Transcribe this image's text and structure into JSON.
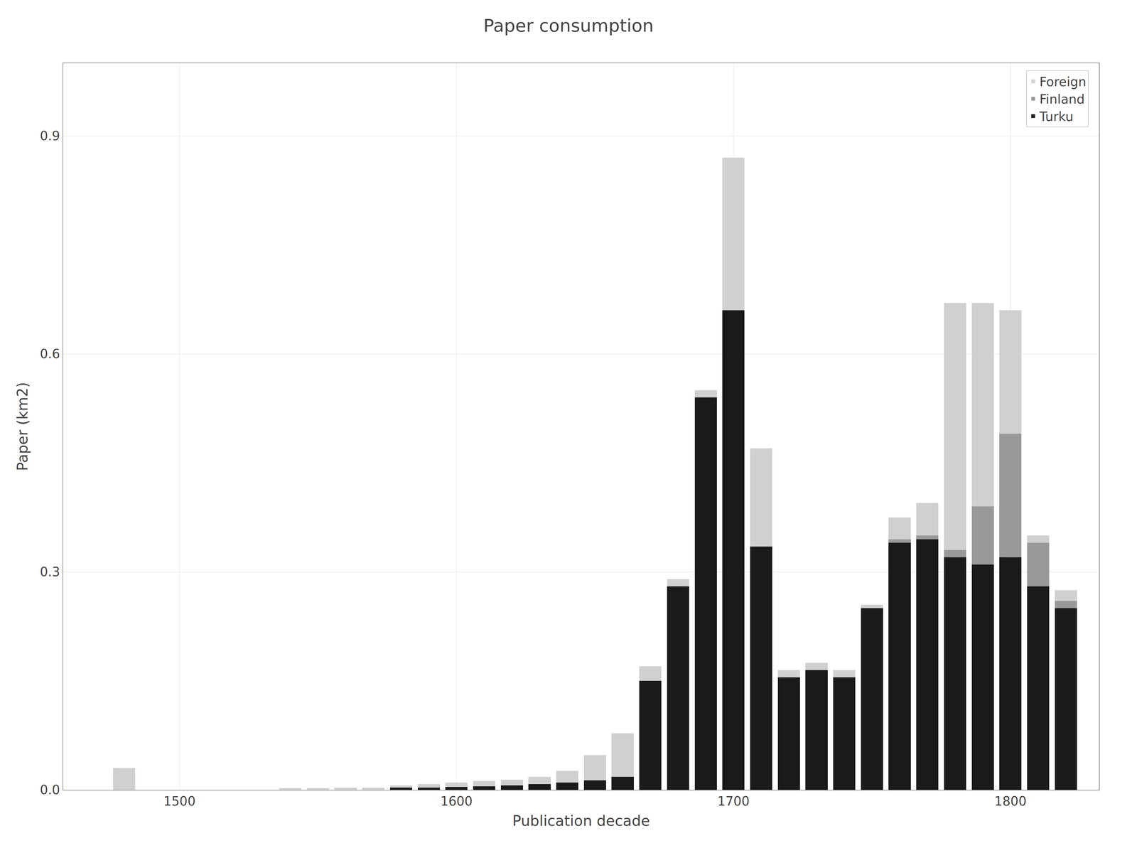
{
  "chart_data": {
    "type": "bar",
    "stacked": true,
    "title": "Paper consumption",
    "xlabel": "Publication decade",
    "ylabel": "Paper (km2)",
    "x": [
      1480,
      1490,
      1500,
      1510,
      1520,
      1530,
      1540,
      1550,
      1560,
      1570,
      1580,
      1590,
      1600,
      1610,
      1620,
      1630,
      1640,
      1650,
      1660,
      1670,
      1680,
      1690,
      1700,
      1710,
      1720,
      1730,
      1740,
      1750,
      1760,
      1770,
      1780,
      1790,
      1800,
      1810,
      1820
    ],
    "series": [
      {
        "name": "Turku",
        "color": "#1a1a1a",
        "values": [
          0.0,
          0.0,
          0.0,
          0.0,
          0.0,
          0.0,
          0.0,
          0.0,
          0.0,
          0.0,
          0.003,
          0.003,
          0.004,
          0.005,
          0.006,
          0.008,
          0.01,
          0.013,
          0.018,
          0.15,
          0.28,
          0.54,
          0.66,
          0.335,
          0.155,
          0.165,
          0.155,
          0.25,
          0.34,
          0.345,
          0.32,
          0.31,
          0.32,
          0.28,
          0.25
        ]
      },
      {
        "name": "Finland",
        "color": "#999999",
        "values": [
          0.0,
          0.0,
          0.0,
          0.0,
          0.0,
          0.0,
          0.0,
          0.0,
          0.0,
          0.0,
          0.0,
          0.0,
          0.0,
          0.0,
          0.0,
          0.0,
          0.0,
          0.0,
          0.0,
          0.0,
          0.0,
          0.0,
          0.0,
          0.0,
          0.0,
          0.0,
          0.0,
          0.0,
          0.005,
          0.005,
          0.01,
          0.08,
          0.17,
          0.06,
          0.01
        ]
      },
      {
        "name": "Foreign",
        "color": "#d0d0d0",
        "values": [
          0.03,
          0.0,
          0.0,
          0.0,
          0.0,
          0.0,
          0.002,
          0.002,
          0.003,
          0.003,
          0.003,
          0.005,
          0.006,
          0.007,
          0.008,
          0.01,
          0.016,
          0.035,
          0.06,
          0.02,
          0.01,
          0.01,
          0.21,
          0.135,
          0.01,
          0.01,
          0.01,
          0.005,
          0.03,
          0.045,
          0.34,
          0.28,
          0.17,
          0.01,
          0.015
        ]
      }
    ],
    "xlim": [
      1458,
      1832
    ],
    "xticks": [
      1500,
      1600,
      1700,
      1800
    ],
    "ylim": [
      0,
      1.0
    ],
    "yticks": [
      {
        "value": 0,
        "label": "0.0"
      },
      0.3,
      0.6,
      0.9
    ],
    "grid": true,
    "legend": "upper right"
  }
}
